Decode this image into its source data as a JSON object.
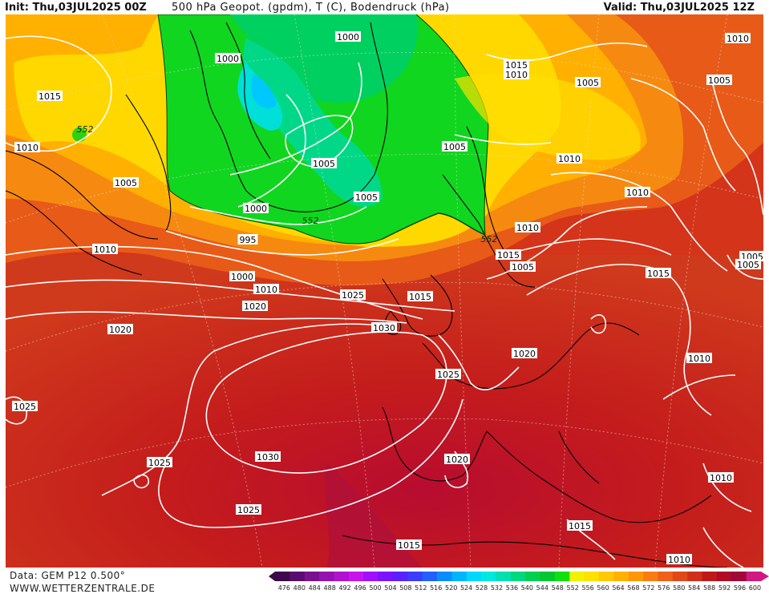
{
  "header": {
    "init": "Init: Thu,03JUL2025 00Z",
    "title": "500 hPa Geopot. (gpdm), T (C), Bodendruck (hPa)",
    "valid": "Valid: Thu,03JUL2025 12Z"
  },
  "footer": {
    "data_source": "Data: GEM P12 0.500°",
    "website": "WWW.WETTERZENTRALE.DE"
  },
  "colorscale": {
    "values": [
      "476",
      "480",
      "484",
      "488",
      "492",
      "496",
      "500",
      "504",
      "508",
      "512",
      "516",
      "520",
      "524",
      "528",
      "532",
      "536",
      "540",
      "544",
      "548",
      "552",
      "556",
      "560",
      "564",
      "568",
      "572",
      "576",
      "580",
      "584",
      "588",
      "592",
      "596",
      "600"
    ],
    "colors": [
      "#3c0a4a",
      "#5a0d6e",
      "#7a1090",
      "#9512b0",
      "#b012d0",
      "#c812ee",
      "#a010ff",
      "#7a14ff",
      "#5a20ff",
      "#3c3cff",
      "#2060ff",
      "#0a8cff",
      "#00b4ff",
      "#00d8ff",
      "#00e8e0",
      "#00e0b0",
      "#00d880",
      "#00d050",
      "#00c830",
      "#10e010",
      "#f0f000",
      "#ffe000",
      "#ffc800",
      "#ffb000",
      "#ff9800",
      "#f87c10",
      "#f06018",
      "#e04818",
      "#d03018",
      "#c01818",
      "#b00c28",
      "#a00838",
      "#d01880"
    ]
  },
  "contour_labels": [
    {
      "text": "1000",
      "role": "isobar"
    },
    {
      "text": "1000",
      "role": "isobar"
    },
    {
      "text": "1010",
      "role": "isobar"
    },
    {
      "text": "1015",
      "role": "isobar"
    },
    {
      "text": "1010",
      "role": "isobar"
    },
    {
      "text": "1005",
      "role": "isobar"
    },
    {
      "text": "1005",
      "role": "isobar"
    },
    {
      "text": "1015",
      "role": "isobar"
    },
    {
      "text": "552",
      "role": "height"
    },
    {
      "text": "1010",
      "role": "isobar"
    },
    {
      "text": "1005",
      "role": "isobar"
    },
    {
      "text": "1005",
      "role": "isobar"
    },
    {
      "text": "1010",
      "role": "isobar"
    },
    {
      "text": "1005",
      "role": "isobar"
    },
    {
      "text": "1005",
      "role": "isobar"
    },
    {
      "text": "1000",
      "role": "isobar"
    },
    {
      "text": "1010",
      "role": "isobar"
    },
    {
      "text": "552",
      "role": "height"
    },
    {
      "text": "995",
      "role": "isobar"
    },
    {
      "text": "1010",
      "role": "isobar"
    },
    {
      "text": "552",
      "role": "height"
    },
    {
      "text": "1005",
      "role": "isobar"
    },
    {
      "text": "1010",
      "role": "isobar"
    },
    {
      "text": "1015",
      "role": "isobar"
    },
    {
      "text": "1005",
      "role": "isobar"
    },
    {
      "text": "1000",
      "role": "isobar"
    },
    {
      "text": "1005",
      "role": "isobar"
    },
    {
      "text": "1010",
      "role": "isobar"
    },
    {
      "text": "1015",
      "role": "isobar"
    },
    {
      "text": "1020",
      "role": "isobar"
    },
    {
      "text": "1025",
      "role": "isobar"
    },
    {
      "text": "1015",
      "role": "isobar"
    },
    {
      "text": "1020",
      "role": "isobar"
    },
    {
      "text": "1030",
      "role": "isobar"
    },
    {
      "text": "1010",
      "role": "isobar"
    },
    {
      "text": "1020",
      "role": "isobar"
    },
    {
      "text": "1025",
      "role": "isobar"
    },
    {
      "text": "1025",
      "role": "isobar"
    },
    {
      "text": "1030",
      "role": "isobar"
    },
    {
      "text": "1025",
      "role": "isobar"
    },
    {
      "text": "1020",
      "role": "isobar"
    },
    {
      "text": "1025",
      "role": "isobar"
    },
    {
      "text": "1010",
      "role": "isobar"
    },
    {
      "text": "1015",
      "role": "isobar"
    },
    {
      "text": "1015",
      "role": "isobar"
    },
    {
      "text": "1010",
      "role": "isobar"
    }
  ]
}
